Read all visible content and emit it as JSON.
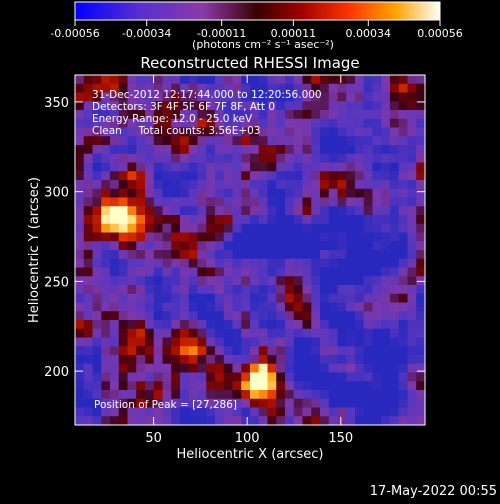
{
  "chart_data": {
    "type": "heatmap",
    "title": "Reconstructed RHESSI Image",
    "xlabel": "Heliocentric X (arcsec)",
    "ylabel": "Heliocentric Y (arcsec)",
    "xlim": [
      8,
      195
    ],
    "ylim": [
      170,
      365
    ],
    "xticks": [
      50,
      100,
      150
    ],
    "yticks": [
      200,
      250,
      300,
      350
    ],
    "colorbar": {
      "ticks": [
        "-0.00056",
        "-0.00034",
        "-0.00011",
        "0.00011",
        "0.00034",
        "0.00056"
      ],
      "tick_values": [
        -0.00056,
        -0.00034,
        -0.00011,
        0.00011,
        0.00034,
        0.00056
      ],
      "units_label": "(photons cm⁻² s⁻¹ asec⁻²)"
    },
    "annotations": {
      "time_range": "31-Dec-2012 12:17:44.000 to 12:20:56.000",
      "detectors": "Detectors: 3F 4F 5F 6F 7F 8F, Att 0",
      "energy": "Energy Range: 12.0 - 25.0 keV",
      "clean": "Clean     Total counts: 3.56E+03",
      "peak": "Position of Peak = [27,286]"
    },
    "grid": false,
    "approx_peaks": [
      {
        "x": 27,
        "y": 286,
        "level": 1.0
      },
      {
        "x": 105,
        "y": 195,
        "level": 0.9
      },
      {
        "x": 65,
        "y": 215,
        "level": 0.7
      },
      {
        "x": 37,
        "y": 310,
        "level": 0.6
      }
    ]
  },
  "footer": {
    "timestamp": "17-May-2022 00:55"
  }
}
